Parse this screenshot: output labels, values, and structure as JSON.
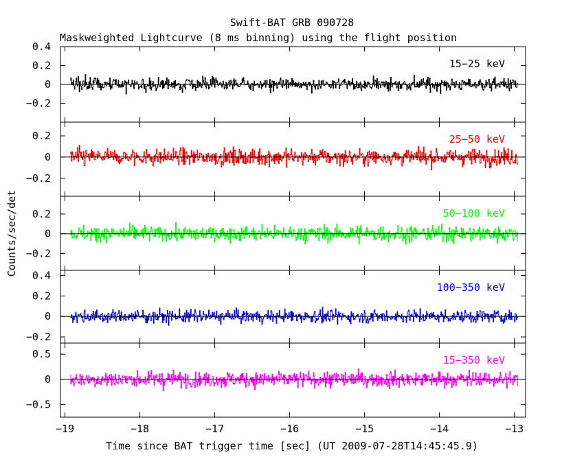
{
  "chart_data": {
    "type": "line",
    "title": "Swift-BAT GRB 090728",
    "subtitle": "Maskweighted Lightcurve (8 ms binning) using the flight position",
    "xlabel": "Time since BAT trigger time [sec] (UT 2009-07-28T14:45:45.9)",
    "ylabel": "Counts/sec/det",
    "xlim": [
      -19.06,
      -12.85
    ],
    "data_range": [
      -18.93,
      -12.95
    ],
    "bin_width_s": 0.008,
    "xticks": [
      -19,
      -18,
      -17,
      -16,
      -15,
      -14,
      -13
    ],
    "xtick_labels": [
      "−19",
      "−18",
      "−17",
      "−16",
      "−15",
      "−14",
      "−13"
    ],
    "panels": [
      {
        "name": "15-25 keV",
        "label": "15−25 keV",
        "color": "#000000",
        "ylim": [
          -0.4,
          0.4
        ],
        "yticks": [
          -0.2,
          0,
          0.2,
          0.4
        ],
        "ytick_labels": [
          "−0.2",
          "0",
          "0.2",
          "0.4"
        ],
        "noise_sigma": 0.085
      },
      {
        "name": "25-50 keV",
        "label": "25−50 keV",
        "color": "#ff0000",
        "ylim": [
          -0.37,
          0.33
        ],
        "yticks": [
          -0.2,
          0,
          0.2
        ],
        "ytick_labels": [
          "−0.2",
          "0",
          "0.2"
        ],
        "noise_sigma": 0.1
      },
      {
        "name": "50-100 keV",
        "label": "50−100 keV",
        "color": "#00ff00",
        "ylim": [
          -0.37,
          0.38
        ],
        "yticks": [
          -0.2,
          0,
          0.2
        ],
        "ytick_labels": [
          "−0.2",
          "0",
          "0.2"
        ],
        "noise_sigma": 0.1
      },
      {
        "name": "100-350 keV",
        "label": "100−350 keV",
        "color": "#0000ff",
        "ylim": [
          -0.26,
          0.45
        ],
        "yticks": [
          -0.2,
          0,
          0.2,
          0.4
        ],
        "ytick_labels": [
          "−0.2",
          "0",
          "0.2",
          "0.4"
        ],
        "noise_sigma": 0.08
      },
      {
        "name": "15-350 keV",
        "label": "15−350 keV",
        "color": "#ff00ff",
        "ylim": [
          -0.75,
          0.72
        ],
        "yticks": [
          -0.5,
          0,
          0.5
        ],
        "ytick_labels": [
          "−0.5",
          "0",
          "0.5"
        ],
        "noise_sigma": 0.2
      }
    ]
  }
}
